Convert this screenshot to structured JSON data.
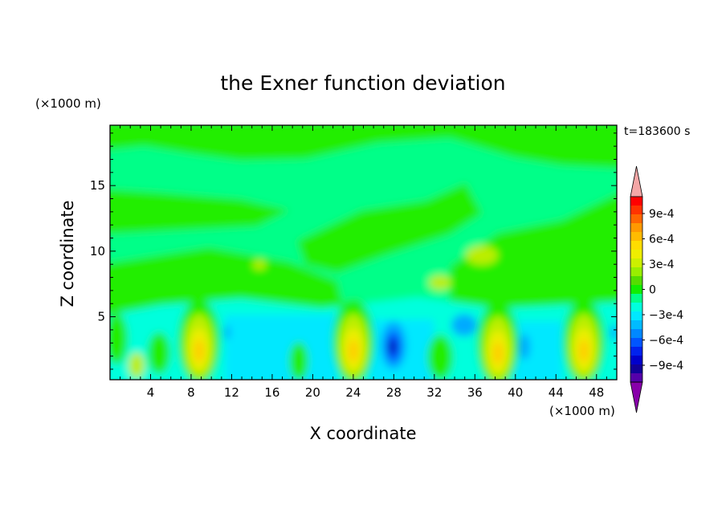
{
  "chart_data": {
    "type": "heatmap",
    "title": "the Exner function deviation",
    "xlabel": "X coordinate",
    "ylabel": "Z coordinate",
    "x_unit": "(×1000 m)",
    "y_unit": "(×1000 m)",
    "time_label": "t=183600 s",
    "xlim": [
      0,
      50
    ],
    "ylim": [
      0.2,
      19.6
    ],
    "x_ticks": [
      4,
      8,
      12,
      16,
      20,
      24,
      28,
      32,
      36,
      40,
      44,
      48
    ],
    "y_ticks": [
      5,
      10,
      15
    ],
    "colorbar": {
      "labels": [
        "9e-4",
        "6e-4",
        "3e-4",
        "0",
        "−3e-4",
        "−6e-4",
        "−9e-4"
      ],
      "label_values": [
        0.0009,
        0.0006,
        0.0003,
        0,
        -0.0003,
        -0.0006,
        -0.0009
      ],
      "levels": [
        -0.0011,
        -0.001,
        -0.0009,
        -0.0008,
        -0.0007,
        -0.0006,
        -0.0005,
        -0.0004,
        -0.0003,
        -0.0002,
        -0.0001,
        0,
        0.0001,
        0.0002,
        0.0003,
        0.0004,
        0.0005,
        0.0006,
        0.0007,
        0.0008,
        0.0009,
        0.001,
        0.0011
      ],
      "colors": [
        "#f4a6a6",
        "#ff0000",
        "#ff3300",
        "#ff6600",
        "#ff9900",
        "#ffbb00",
        "#ffdd00",
        "#eeee00",
        "#ccf000",
        "#99ee00",
        "#55dd00",
        "#11ee00",
        "#00ff88",
        "#00ffdd",
        "#00e8ff",
        "#00bbff",
        "#0088ff",
        "#0055ff",
        "#0022ee",
        "#0000cc",
        "#110099",
        "#5500aa",
        "#8800aa"
      ]
    }
  }
}
